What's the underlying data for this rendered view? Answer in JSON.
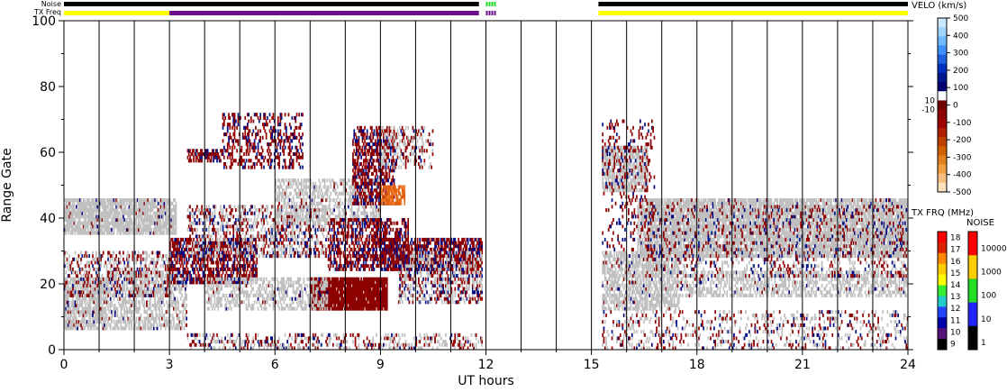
{
  "chart_data": {
    "type": "heatmap",
    "xlabel": "UT hours",
    "ylabel": "Range Gate",
    "xlim": [
      0,
      24
    ],
    "ylim": [
      0,
      100
    ],
    "x_ticks": [
      "0",
      "3",
      "6",
      "9",
      "12",
      "15",
      "18",
      "21",
      "24"
    ],
    "y_ticks": [
      "0",
      "20",
      "40",
      "60",
      "80",
      "100"
    ],
    "vertical_hour_lines": [
      1,
      2,
      3,
      4,
      5,
      6,
      7,
      8,
      9,
      10,
      11,
      12,
      13,
      14,
      15,
      16,
      17,
      18,
      19,
      20,
      21,
      22,
      23
    ],
    "status_bars": {
      "noise_label": "Noise",
      "txfreq_label": "TX Freq",
      "noise_segments": [
        {
          "from": 0,
          "to": 11.8,
          "color": "#000000"
        },
        {
          "from": 12.0,
          "to": 12.25,
          "color": "#22dd22",
          "dashed": true
        },
        {
          "from": 15.2,
          "to": 24,
          "color": "#000000"
        }
      ],
      "txfreq_segments": [
        {
          "from": 0,
          "to": 3.0,
          "color": "#ffff00"
        },
        {
          "from": 3.0,
          "to": 11.8,
          "color": "#6a0f8a"
        },
        {
          "from": 12.0,
          "to": 12.25,
          "color": "#6a0f8a",
          "dashed": true
        },
        {
          "from": 15.2,
          "to": 24,
          "color": "#ffff00"
        }
      ]
    },
    "scatter_regions": [
      {
        "x": [
          0,
          3.2
        ],
        "y": [
          35,
          46
        ],
        "kind": "ground",
        "density": 0.85
      },
      {
        "x": [
          0,
          1.2
        ],
        "y": [
          6,
          22
        ],
        "kind": "ground",
        "density": 0.8
      },
      {
        "x": [
          1.2,
          3.5
        ],
        "y": [
          6,
          24
        ],
        "kind": "ground",
        "density": 0.55
      },
      {
        "x": [
          0,
          3.0
        ],
        "y": [
          16,
          30
        ],
        "kind": "mixed",
        "density": 0.35
      },
      {
        "x": [
          3.0,
          5.5
        ],
        "y": [
          20,
          34
        ],
        "kind": "ionos",
        "density": 0.6
      },
      {
        "x": [
          3.5,
          7.5
        ],
        "y": [
          28,
          44
        ],
        "kind": "mixed",
        "density": 0.45
      },
      {
        "x": [
          4.5,
          6.8
        ],
        "y": [
          55,
          72
        ],
        "kind": "ionos",
        "density": 0.35
      },
      {
        "x": [
          3.5,
          4.5
        ],
        "y": [
          57,
          61
        ],
        "kind": "ionos",
        "density": 0.6
      },
      {
        "x": [
          6.0,
          9.0
        ],
        "y": [
          38,
          52
        ],
        "kind": "ground",
        "density": 0.5
      },
      {
        "x": [
          8.2,
          9.4
        ],
        "y": [
          44,
          68
        ],
        "kind": "ionos",
        "density": 0.55
      },
      {
        "x": [
          9.0,
          10.5
        ],
        "y": [
          55,
          68
        ],
        "kind": "mixed",
        "density": 0.35
      },
      {
        "x": [
          9.0,
          9.7
        ],
        "y": [
          44,
          50
        ],
        "kind": "strong-neg",
        "density": 0.8
      },
      {
        "x": [
          7.0,
          9.2
        ],
        "y": [
          12,
          22
        ],
        "kind": "dense-ionos",
        "density": 0.95
      },
      {
        "x": [
          7.5,
          9.8
        ],
        "y": [
          24,
          40
        ],
        "kind": "ionos",
        "density": 0.55
      },
      {
        "x": [
          9.0,
          11.9
        ],
        "y": [
          24,
          34
        ],
        "kind": "ionos",
        "density": 0.65
      },
      {
        "x": [
          9.5,
          11.9
        ],
        "y": [
          14,
          30
        ],
        "kind": "mixed",
        "density": 0.5
      },
      {
        "x": [
          4.0,
          7.5
        ],
        "y": [
          12,
          22
        ],
        "kind": "ground",
        "density": 0.45
      },
      {
        "x": [
          3.5,
          11.9
        ],
        "y": [
          0,
          5
        ],
        "kind": "mixed",
        "density": 0.3
      },
      {
        "x": [
          15.3,
          16.6
        ],
        "y": [
          48,
          62
        ],
        "kind": "ground",
        "density": 0.75
      },
      {
        "x": [
          16.3,
          24
        ],
        "y": [
          28,
          46
        ],
        "kind": "ground",
        "density": 0.8
      },
      {
        "x": [
          15.3,
          17.5
        ],
        "y": [
          12,
          30
        ],
        "kind": "ground",
        "density": 0.65
      },
      {
        "x": [
          17.5,
          24
        ],
        "y": [
          16,
          24
        ],
        "kind": "ground",
        "density": 0.5
      },
      {
        "x": [
          16.5,
          24
        ],
        "y": [
          22,
          44
        ],
        "kind": "mixed",
        "density": 0.25
      },
      {
        "x": [
          15.3,
          24
        ],
        "y": [
          0,
          12
        ],
        "kind": "mixed",
        "density": 0.22
      },
      {
        "x": [
          15.3,
          16.8
        ],
        "y": [
          30,
          70
        ],
        "kind": "ionos",
        "density": 0.15
      }
    ],
    "velocity_colorbar": {
      "title": "VELO (km/s)",
      "range": [
        -500,
        500
      ],
      "ticks": [
        "500",
        "400",
        "300",
        "200",
        "100",
        "0",
        "-100",
        "-200",
        "-300",
        "-400",
        "-500"
      ],
      "zero_labels": [
        "10",
        "-10"
      ]
    },
    "txfreq_colorbar": {
      "title": "TX FRQ (MHz)",
      "ticks": [
        "18",
        "17",
        "16",
        "15",
        "14",
        "13",
        "12",
        "11",
        "10",
        "9"
      ],
      "colors": [
        "#ff0000",
        "#dd2200",
        "#ff8800",
        "#ffcc00",
        "#ffff00",
        "#33ee33",
        "#22cccc",
        "#2244ff",
        "#0000aa",
        "#551177",
        "#000000"
      ]
    },
    "noise_colorbar": {
      "title": "NOISE",
      "ticks": [
        "10000",
        "1000",
        "100",
        "10",
        "1"
      ],
      "colors": [
        "#ff0000",
        "#ffcc00",
        "#22dd22",
        "#2222ff",
        "#000000"
      ]
    }
  }
}
